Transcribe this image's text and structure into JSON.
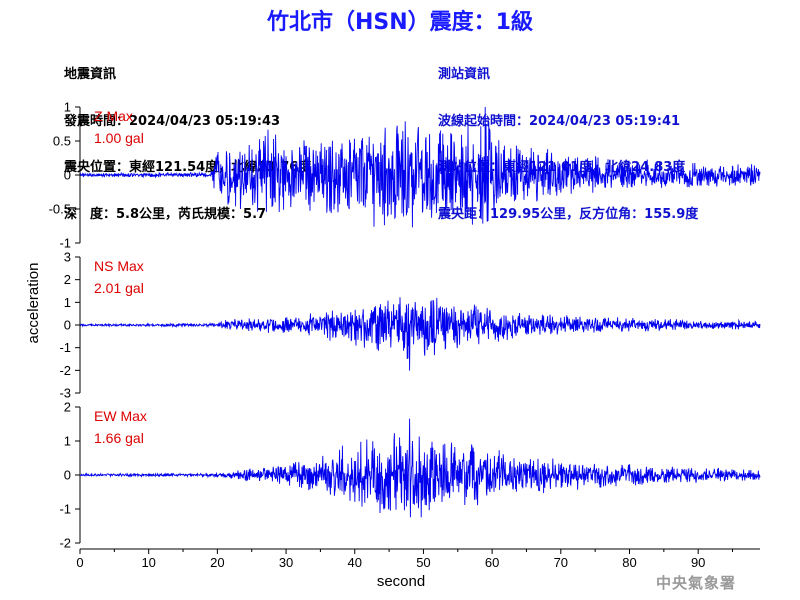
{
  "header": {
    "title": "竹北市（HSN）震度：1級"
  },
  "quake_info": {
    "heading": "地震資訊",
    "origin_time": "發震時間：2024/04/23 05:19:43",
    "epicenter": "震央位置：東經121.54度，北緯23.76度",
    "depth_magnitude": "深　度：5.8公里，芮氏規模：5.7"
  },
  "station_info": {
    "heading": "測站資訊",
    "wave_start": "波線起始時間：2024/04/23 05:19:41",
    "location": "測站位置：東經121.01度，北緯24.83度",
    "distance": "震央距：129.95公里，反方位角：155.9度"
  },
  "footer": {
    "credit": "中央氣象署"
  },
  "colors": {
    "trace": "#0000ee",
    "label": "#dd0000",
    "title": "#1a1aff",
    "station": "#1010d0"
  },
  "chart_data": {
    "type": "line",
    "xlabel": "second",
    "ylabel": "acceleration",
    "xlim": [
      0,
      99
    ],
    "x_ticks": [
      0,
      10,
      20,
      30,
      40,
      50,
      60,
      70,
      80,
      90
    ],
    "grid": false,
    "panels": [
      {
        "name": "Z",
        "max_label": "Z Max",
        "max_value": "1.00 gal",
        "max": 1.0,
        "ylim": [
          -1,
          1
        ],
        "y_ticks": [
          1,
          0.5,
          0,
          -0.5,
          -1
        ],
        "y_tick_labels": [
          "1",
          "0.5",
          "0",
          "-0.5",
          "-1"
        ],
        "envelope": [
          [
            0,
            0.03
          ],
          [
            19,
            0.04
          ],
          [
            20,
            0.45
          ],
          [
            25,
            0.6
          ],
          [
            28,
            0.85
          ],
          [
            30,
            0.6
          ],
          [
            35,
            0.6
          ],
          [
            40,
            0.7
          ],
          [
            47,
            0.9
          ],
          [
            50,
            0.8
          ],
          [
            52,
            0.85
          ],
          [
            56,
            0.8
          ],
          [
            59,
            0.95
          ],
          [
            62,
            0.55
          ],
          [
            70,
            0.35
          ],
          [
            80,
            0.25
          ],
          [
            90,
            0.2
          ],
          [
            99,
            0.18
          ]
        ]
      },
      {
        "name": "NS",
        "max_label": "NS Max",
        "max_value": "2.01 gal",
        "max": 2.01,
        "ylim": [
          -3,
          3
        ],
        "y_ticks": [
          3,
          2,
          1,
          0,
          -1,
          -2,
          -3
        ],
        "y_tick_labels": [
          "3",
          "2",
          "1",
          "0",
          "-1",
          "-2",
          "-3"
        ],
        "envelope": [
          [
            0,
            0.05
          ],
          [
            20,
            0.08
          ],
          [
            21,
            0.25
          ],
          [
            30,
            0.4
          ],
          [
            35,
            0.6
          ],
          [
            40,
            1.0
          ],
          [
            44,
            1.2
          ],
          [
            48,
            1.6
          ],
          [
            52,
            1.4
          ],
          [
            55,
            1.1
          ],
          [
            60,
            0.8
          ],
          [
            65,
            0.6
          ],
          [
            70,
            0.45
          ],
          [
            80,
            0.35
          ],
          [
            90,
            0.25
          ],
          [
            99,
            0.2
          ]
        ]
      },
      {
        "name": "EW",
        "max_label": "EW Max",
        "max_value": "1.66 gal",
        "max": 1.66,
        "ylim": [
          -2,
          2
        ],
        "y_ticks": [
          2,
          1,
          0,
          -1,
          -2
        ],
        "y_tick_labels": [
          "2",
          "1",
          "0",
          "-1",
          "-2"
        ],
        "envelope": [
          [
            0,
            0.04
          ],
          [
            20,
            0.06
          ],
          [
            24,
            0.2
          ],
          [
            30,
            0.35
          ],
          [
            35,
            0.6
          ],
          [
            38,
            1.0
          ],
          [
            42,
            1.1
          ],
          [
            48,
            1.5
          ],
          [
            52,
            1.2
          ],
          [
            56,
            1.0
          ],
          [
            60,
            0.8
          ],
          [
            65,
            0.6
          ],
          [
            70,
            0.5
          ],
          [
            80,
            0.35
          ],
          [
            90,
            0.25
          ],
          [
            99,
            0.2
          ]
        ]
      }
    ]
  }
}
